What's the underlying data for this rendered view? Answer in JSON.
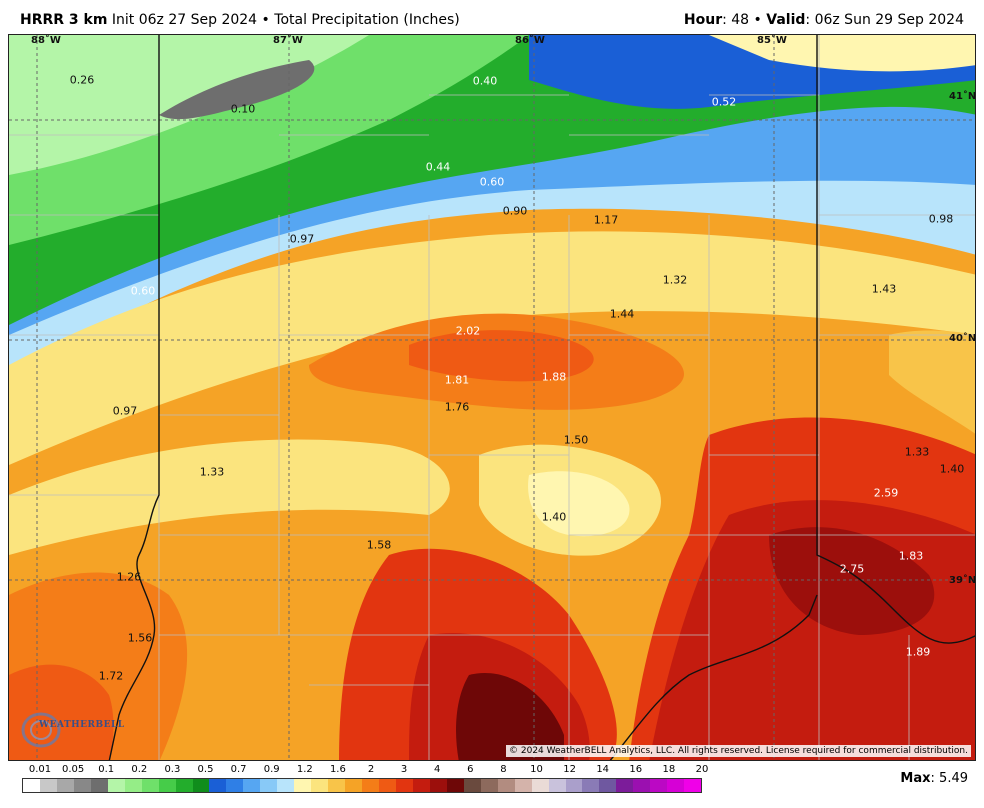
{
  "header": {
    "model": "HRRR 3 km",
    "init": "Init 06z 27 Sep 2024",
    "bullet": "•",
    "product": "Total Precipitation (Inches)",
    "hour_label": "Hour",
    "hour_value": ": 48",
    "valid_label": "Valid",
    "valid_value": ": 06z Sun 29 Sep 2024"
  },
  "map": {
    "longitude_labels": [
      "88˚W",
      "87˚W",
      "86˚W",
      "85˚W"
    ],
    "latitude_labels": [
      "41˚N",
      "40˚N",
      "39˚N"
    ],
    "point_labels": [
      "0.26",
      "0.10",
      "0.40",
      "0.52",
      "0.44",
      "0.60",
      "0.90",
      "1.17",
      "0.98",
      "0.97",
      "0.60",
      "1.32",
      "1.43",
      "2.02",
      "1.44",
      "1.81",
      "1.88",
      "1.76",
      "0.97",
      "1.50",
      "1.33",
      "1.33",
      "1.40",
      "2.59",
      "1.40",
      "1.58",
      "1.83",
      "2.75",
      "1.26",
      "1.56",
      "1.89",
      "1.72"
    ],
    "copyright": "© 2024 WeatherBELL Analytics, LLC. All rights reserved. License required for commercial distribution.",
    "logo_text": "WEATHERBELL"
  },
  "legend": {
    "ticks": [
      "0.01",
      "0.05",
      "0.1",
      "0.2",
      "0.3",
      "0.5",
      "0.7",
      "0.9",
      "1.2",
      "1.6",
      "2",
      "3",
      "4",
      "6",
      "8",
      "10",
      "12",
      "14",
      "16",
      "18",
      "20"
    ],
    "colors": [
      "#ffffff",
      "#c8c8c8",
      "#a8a8a8",
      "#888888",
      "#6e6e6e",
      "#b4f5a8",
      "#95ed87",
      "#6fe06a",
      "#46cc49",
      "#23ad2c",
      "#108d1c",
      "#1a5fd6",
      "#2f7fe6",
      "#56a6f2",
      "#88c9f7",
      "#b8e4fb",
      "#fff6b0",
      "#fbe47e",
      "#f8c449",
      "#f5a326",
      "#f47d18",
      "#ef5a14",
      "#e23510",
      "#c41c0f",
      "#9c0f0c",
      "#6e0707",
      "#6a4a3e",
      "#8d6a5d",
      "#b28c80",
      "#d4b3aa",
      "#eadbd6",
      "#c9c2dc",
      "#aa9fcb",
      "#8a7bb6",
      "#6f58a0",
      "#7c1c9a",
      "#9b10b0",
      "#bb08c4",
      "#d600d6",
      "#f000e8"
    ],
    "max_label": "Max",
    "max_value": ": 5.49"
  }
}
